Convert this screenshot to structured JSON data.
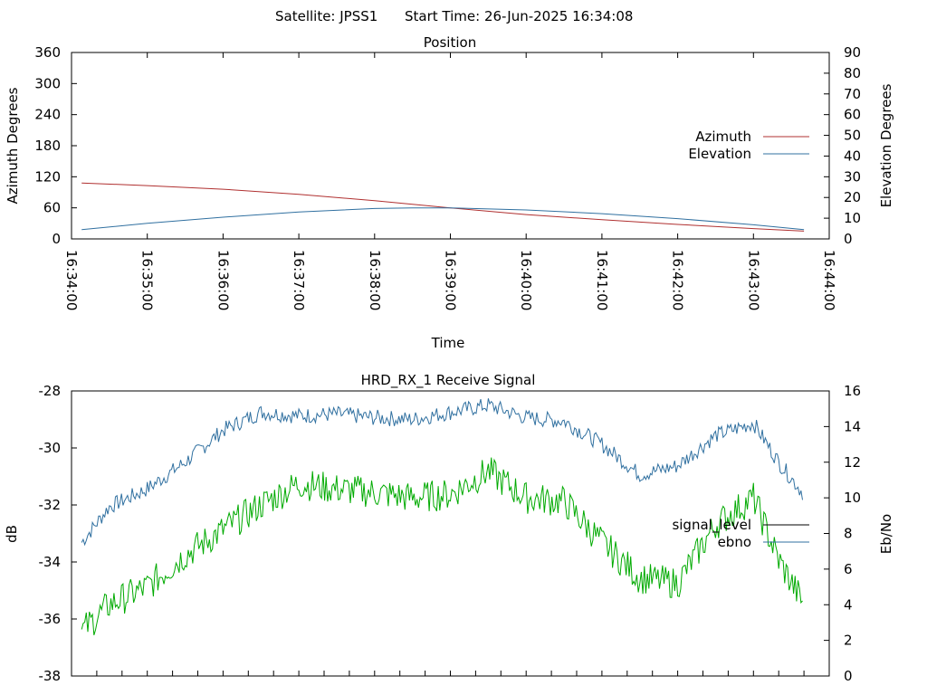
{
  "header": {
    "satellite": "Satellite: JPSS1",
    "start_time": "Start Time: 26-Jun-2025 16:34:08"
  },
  "chart_data": [
    {
      "type": "line",
      "title": "Position",
      "xlabel": "Time",
      "ylabel": "Azimuth Degrees",
      "y2label": "Elevation Degrees",
      "ylim": [
        0,
        360
      ],
      "y2lim": [
        0,
        90
      ],
      "yticks": [
        "0",
        "60",
        "120",
        "180",
        "240",
        "300",
        "360"
      ],
      "y2ticks": [
        "0",
        "10",
        "20",
        "30",
        "40",
        "50",
        "60",
        "70",
        "80",
        "90"
      ],
      "xticks": [
        "16:34:00",
        "16:35:00",
        "16:36:00",
        "16:37:00",
        "16:38:00",
        "16:39:00",
        "16:40:00",
        "16:41:00",
        "16:42:00",
        "16:43:00",
        "16:44:00"
      ],
      "xlim": [
        "16:34:00",
        "16:44:00"
      ],
      "legend": "right",
      "series": [
        {
          "name": "Azimuth",
          "axis": "left",
          "color": "#b03030",
          "x": [
            "16:34:08",
            "16:35:00",
            "16:36:00",
            "16:37:00",
            "16:38:00",
            "16:38:30",
            "16:39:00",
            "16:40:00",
            "16:41:00",
            "16:42:00",
            "16:43:00",
            "16:43:40"
          ],
          "values": [
            108,
            103,
            96,
            86,
            74,
            67,
            60,
            47,
            37,
            28,
            20,
            15
          ]
        },
        {
          "name": "Elevation",
          "axis": "right",
          "color": "#3070a0",
          "x": [
            "16:34:08",
            "16:35:00",
            "16:36:00",
            "16:37:00",
            "16:38:00",
            "16:38:30",
            "16:39:00",
            "16:40:00",
            "16:41:00",
            "16:42:00",
            "16:43:00",
            "16:43:40"
          ],
          "values": [
            4.5,
            7.5,
            10.5,
            13.0,
            14.7,
            15.0,
            15.0,
            14.0,
            12.2,
            9.8,
            6.8,
            4.5
          ]
        }
      ]
    },
    {
      "type": "line",
      "title": "HRD_RX_1 Receive Signal",
      "ylabel": "dB",
      "y2label": "Eb/No",
      "ylim": [
        -38,
        -28
      ],
      "y2lim": [
        0,
        16
      ],
      "yticks": [
        "-38",
        "-36",
        "-34",
        "-32",
        "-30",
        "-28"
      ],
      "y2ticks": [
        "0",
        "2",
        "4",
        "6",
        "8",
        "10",
        "12",
        "14",
        "16"
      ],
      "xlim": [
        "16:34:00",
        "16:44:00"
      ],
      "legend": "right",
      "series": [
        {
          "name": "signal_level",
          "axis": "left",
          "color": "#000000",
          "x": [],
          "values": []
        },
        {
          "name": "ebno",
          "axis": "right",
          "color": "#3070a0",
          "x": [
            "16:34:08",
            "16:34:30",
            "16:35:00",
            "16:35:30",
            "16:36:00",
            "16:36:30",
            "16:37:00",
            "16:37:30",
            "16:38:00",
            "16:38:30",
            "16:39:00",
            "16:39:30",
            "16:40:00",
            "16:40:30",
            "16:41:00",
            "16:41:30",
            "16:42:00",
            "16:42:30",
            "16:43:00",
            "16:43:20",
            "16:43:40"
          ],
          "values": [
            7.5,
            9.5,
            10.5,
            12.0,
            13.8,
            14.8,
            14.6,
            14.7,
            14.5,
            14.4,
            14.8,
            15.2,
            14.5,
            14.3,
            13.0,
            11.3,
            11.8,
            13.5,
            14.2,
            12.0,
            10.2
          ]
        },
        {
          "name": "",
          "axis": "right",
          "color": "#00aa00",
          "x": [
            "16:34:08",
            "16:34:30",
            "16:35:00",
            "16:35:30",
            "16:36:00",
            "16:36:30",
            "16:37:00",
            "16:37:30",
            "16:38:00",
            "16:38:30",
            "16:39:00",
            "16:39:30",
            "16:40:00",
            "16:40:30",
            "16:41:00",
            "16:41:30",
            "16:42:00",
            "16:42:30",
            "16:43:00",
            "16:43:20",
            "16:43:40"
          ],
          "values": [
            2.5,
            4.0,
            5.0,
            6.8,
            8.2,
            9.6,
            10.8,
            10.5,
            10.3,
            10.0,
            10.2,
            11.5,
            10.0,
            9.8,
            7.5,
            5.5,
            5.2,
            8.5,
            10.0,
            6.5,
            4.0
          ]
        }
      ]
    }
  ]
}
